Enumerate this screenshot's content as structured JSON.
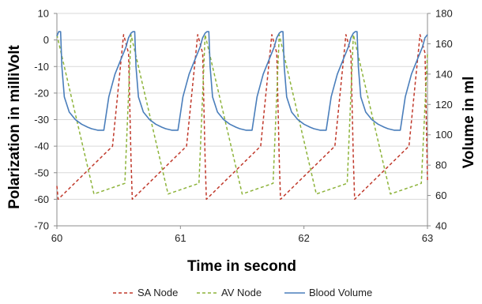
{
  "chart_data": {
    "type": "line",
    "title": "",
    "xlabel": "Time in second",
    "ylabel": "Polarization in milliVolt",
    "y2label": "Volume in ml",
    "xlim": [
      60,
      63
    ],
    "ylim": [
      -70,
      10
    ],
    "y2lim": [
      40,
      180
    ],
    "x_ticks": [
      "60",
      "61",
      "62",
      "63"
    ],
    "y_ticks": [
      "10",
      "0",
      "-10",
      "-20",
      "-30",
      "-40",
      "-50",
      "-60",
      "-70"
    ],
    "y2_ticks": [
      "180",
      "160",
      "140",
      "120",
      "100",
      "80",
      "60",
      "40"
    ],
    "grid": "horizontal",
    "legend_position": "bottom",
    "series": [
      {
        "name": "SA Node",
        "axis": "left",
        "color": "#c0392b",
        "dash": "dashed",
        "x": [
          60.0,
          60.01,
          60.45,
          60.54,
          60.58,
          60.6,
          60.61,
          61.05,
          61.14,
          61.18,
          61.2,
          61.21,
          61.65,
          61.74,
          61.78,
          61.8,
          61.81,
          62.25,
          62.34,
          62.38,
          62.4,
          62.41,
          62.85,
          62.94,
          62.98,
          63.0
        ],
        "y": [
          -55,
          -60,
          -40,
          2,
          -5,
          -45,
          -60,
          -40,
          2,
          -5,
          -45,
          -60,
          -40,
          2,
          -5,
          -45,
          -60,
          -40,
          2,
          -5,
          -45,
          -60,
          -40,
          2,
          -5,
          -53
        ]
      },
      {
        "name": "AV Node",
        "axis": "left",
        "color": "#8db33a",
        "dash": "dashed",
        "x": [
          60.0,
          60.02,
          60.3,
          60.55,
          60.6,
          60.62,
          60.9,
          61.15,
          61.2,
          61.22,
          61.5,
          61.75,
          61.8,
          61.82,
          62.1,
          62.35,
          62.4,
          62.42,
          62.7,
          62.95,
          63.0
        ],
        "y": [
          2,
          -2,
          -58,
          -54,
          2,
          -2,
          -58,
          -54,
          2,
          -2,
          -58,
          -54,
          2,
          -2,
          -58,
          -54,
          2,
          -2,
          -58,
          -54,
          -5
        ]
      },
      {
        "name": "Blood Volume",
        "axis": "right",
        "color": "#4a7ebb",
        "dash": "solid",
        "x": [
          60.0,
          60.015,
          60.03,
          60.04,
          60.06,
          60.1,
          60.15,
          60.2,
          60.25,
          60.28,
          60.33,
          60.36,
          60.38,
          60.42,
          60.47,
          60.52,
          60.56,
          60.58,
          60.6,
          60.615,
          60.63,
          60.64,
          60.66,
          60.7,
          60.75,
          60.8,
          60.85,
          60.88,
          60.93,
          60.96,
          60.98,
          61.02,
          61.07,
          61.12,
          61.16,
          61.18,
          61.2,
          61.215,
          61.23,
          61.24,
          61.26,
          61.3,
          61.35,
          61.4,
          61.45,
          61.48,
          61.53,
          61.56,
          61.58,
          61.62,
          61.67,
          61.72,
          61.76,
          61.78,
          61.8,
          61.815,
          61.83,
          61.84,
          61.86,
          61.9,
          61.95,
          62.0,
          62.05,
          62.08,
          62.13,
          62.16,
          62.18,
          62.22,
          62.27,
          62.32,
          62.36,
          62.38,
          62.4,
          62.415,
          62.43,
          62.44,
          62.46,
          62.5,
          62.55,
          62.6,
          62.65,
          62.68,
          62.73,
          62.76,
          62.78,
          62.82,
          62.87,
          62.92,
          62.96,
          62.98,
          63.0
        ],
        "y": [
          165,
          168,
          168,
          145,
          125,
          115,
          110,
          107,
          105,
          104,
          103,
          103,
          103,
          125,
          140,
          150,
          158,
          164,
          167,
          168,
          168,
          145,
          125,
          115,
          110,
          107,
          105,
          104,
          103,
          103,
          103,
          125,
          140,
          150,
          158,
          164,
          167,
          168,
          168,
          145,
          125,
          115,
          110,
          107,
          105,
          104,
          103,
          103,
          103,
          125,
          140,
          150,
          158,
          164,
          167,
          168,
          168,
          145,
          125,
          115,
          110,
          107,
          105,
          104,
          103,
          103,
          103,
          125,
          140,
          150,
          158,
          164,
          167,
          168,
          168,
          145,
          125,
          115,
          110,
          107,
          105,
          104,
          103,
          103,
          103,
          125,
          140,
          150,
          158,
          164,
          166
        ]
      }
    ]
  }
}
